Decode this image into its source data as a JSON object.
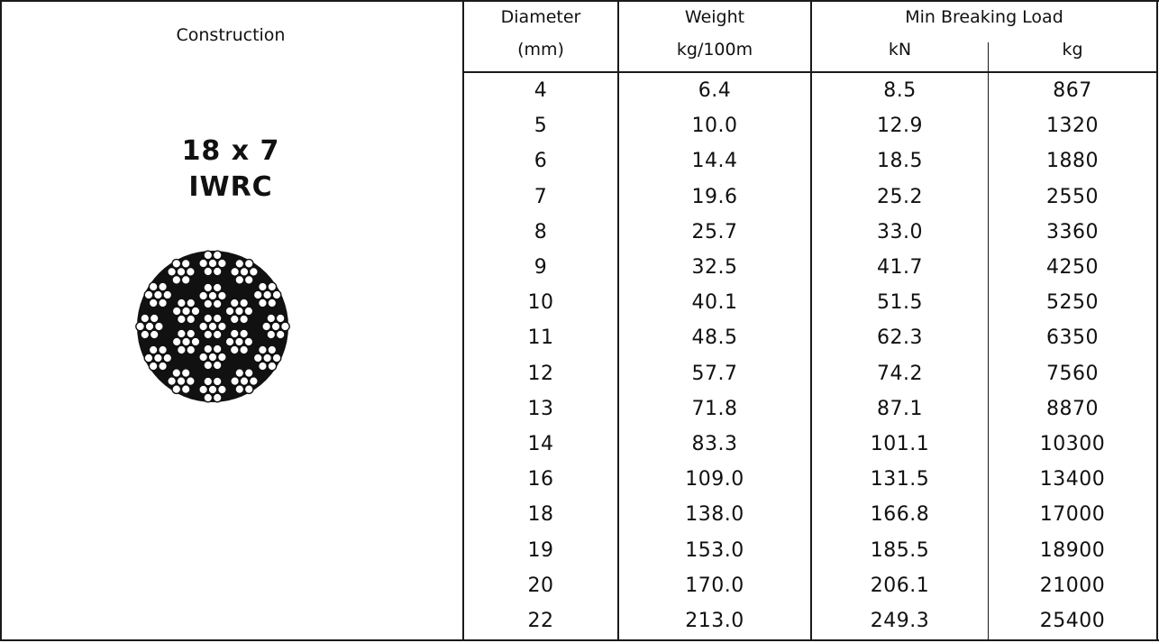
{
  "header": {
    "construction": "Construction",
    "diameter_line1": "Diameter",
    "diameter_line2": "(mm)",
    "weight_line1": "Weight",
    "weight_line2": "kg/100m",
    "mbl": "Min Breaking Load",
    "kn": "kN",
    "kg": "kg"
  },
  "construction": {
    "code_line1": "18 x 7",
    "code_line2": "IWRC",
    "diagram_icon": "wire-rope-cross-section-icon"
  },
  "rows": [
    {
      "diameter": "4",
      "weight": "6.4",
      "kn": "8.5",
      "kg": "867"
    },
    {
      "diameter": "5",
      "weight": "10.0",
      "kn": "12.9",
      "kg": "1320"
    },
    {
      "diameter": "6",
      "weight": "14.4",
      "kn": "18.5",
      "kg": "1880"
    },
    {
      "diameter": "7",
      "weight": "19.6",
      "kn": "25.2",
      "kg": "2550"
    },
    {
      "diameter": "8",
      "weight": "25.7",
      "kn": "33.0",
      "kg": "3360"
    },
    {
      "diameter": "9",
      "weight": "32.5",
      "kn": "41.7",
      "kg": "4250"
    },
    {
      "diameter": "10",
      "weight": "40.1",
      "kn": "51.5",
      "kg": "5250"
    },
    {
      "diameter": "11",
      "weight": "48.5",
      "kn": "62.3",
      "kg": "6350"
    },
    {
      "diameter": "12",
      "weight": "57.7",
      "kn": "74.2",
      "kg": "7560"
    },
    {
      "diameter": "13",
      "weight": "71.8",
      "kn": "87.1",
      "kg": "8870"
    },
    {
      "diameter": "14",
      "weight": "83.3",
      "kn": "101.1",
      "kg": "10300"
    },
    {
      "diameter": "16",
      "weight": "109.0",
      "kn": "131.5",
      "kg": "13400"
    },
    {
      "diameter": "18",
      "weight": "138.0",
      "kn": "166.8",
      "kg": "17000"
    },
    {
      "diameter": "19",
      "weight": "153.0",
      "kn": "185.5",
      "kg": "18900"
    },
    {
      "diameter": "20",
      "weight": "170.0",
      "kn": "206.1",
      "kg": "21000"
    },
    {
      "diameter": "22",
      "weight": "213.0",
      "kn": "249.3",
      "kg": "25400"
    }
  ]
}
